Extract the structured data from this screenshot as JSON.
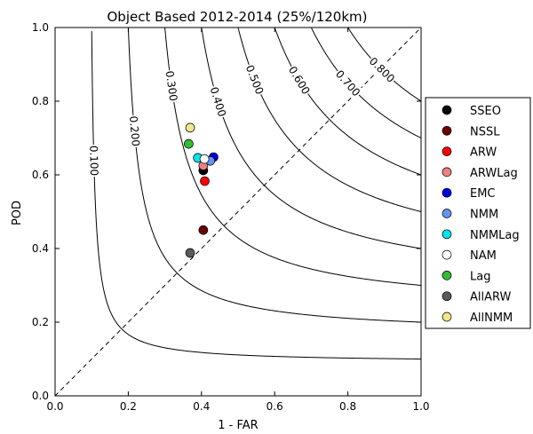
{
  "chart_data": {
    "type": "scatter",
    "title": "Object Based 2012-2014 (25%/120km)",
    "xlabel": "1 - FAR",
    "ylabel": "POD",
    "xlim": [
      0.0,
      1.0
    ],
    "ylim": [
      0.0,
      1.0
    ],
    "xticks": [
      "0.0",
      "0.2",
      "0.4",
      "0.6",
      "0.8",
      "1.0"
    ],
    "yticks": [
      "0.0",
      "0.2",
      "0.4",
      "0.6",
      "0.8",
      "1.0"
    ],
    "grid": false,
    "legend_position": "right",
    "csi_contours": [
      {
        "value": 0.1,
        "label": "0.100"
      },
      {
        "value": 0.2,
        "label": "0.200"
      },
      {
        "value": 0.3,
        "label": "0.300"
      },
      {
        "value": 0.4,
        "label": "0.400"
      },
      {
        "value": 0.5,
        "label": "0.500"
      },
      {
        "value": 0.6,
        "label": "0.600"
      },
      {
        "value": 0.7,
        "label": "0.700"
      },
      {
        "value": 0.8,
        "label": "0.800"
      }
    ],
    "diagonal": "dashed 1:1 line",
    "series": [
      {
        "name": "SSEO",
        "color": "#000000",
        "x": 0.405,
        "y": 0.612
      },
      {
        "name": "NSSL",
        "color": "#6b0000",
        "x": 0.405,
        "y": 0.45
      },
      {
        "name": "ARW",
        "color": "#ff0000",
        "x": 0.409,
        "y": 0.583
      },
      {
        "name": "ARWLag",
        "color": "#f08080",
        "x": 0.405,
        "y": 0.625
      },
      {
        "name": "EMC",
        "color": "#0000dd",
        "x": 0.433,
        "y": 0.648
      },
      {
        "name": "NMM",
        "color": "#6495ed",
        "x": 0.424,
        "y": 0.638
      },
      {
        "name": "NMMLag",
        "color": "#00e5ee",
        "x": 0.39,
        "y": 0.646
      },
      {
        "name": "NAM",
        "color": "#ffffff",
        "x": 0.408,
        "y": 0.643
      },
      {
        "name": "Lag",
        "color": "#33bb33",
        "x": 0.365,
        "y": 0.684
      },
      {
        "name": "AllARW",
        "color": "#5a5a5a",
        "x": 0.369,
        "y": 0.388
      },
      {
        "name": "AllNMM",
        "color": "#f0e68c",
        "x": 0.369,
        "y": 0.728
      }
    ]
  }
}
